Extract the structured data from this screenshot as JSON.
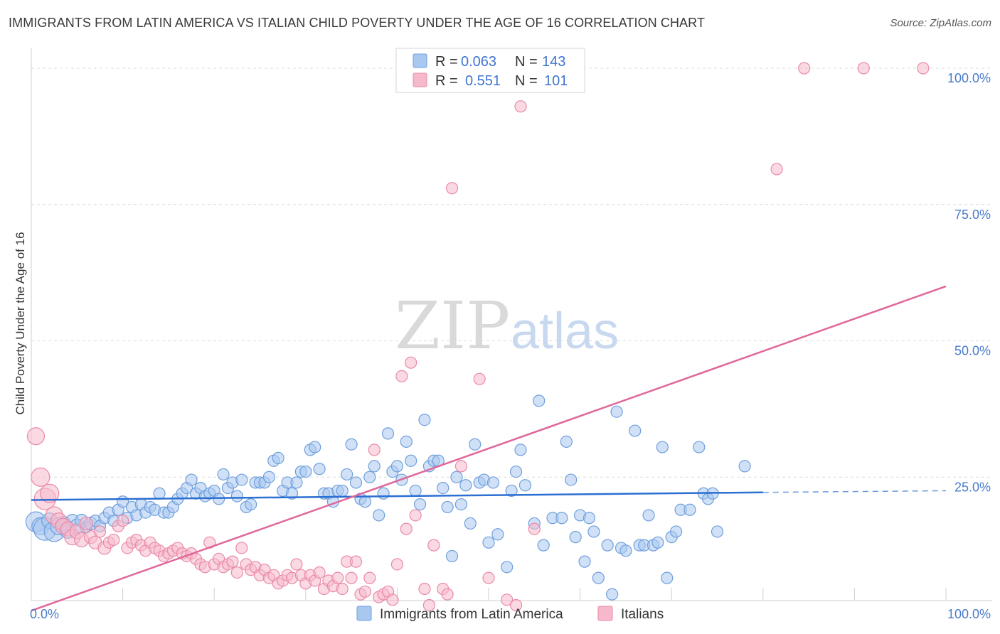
{
  "header": {
    "title": "IMMIGRANTS FROM LATIN AMERICA VS ITALIAN CHILD POVERTY UNDER THE AGE OF 16 CORRELATION CHART",
    "source": "Source: ZipAtlas.com"
  },
  "watermark": {
    "zip": "ZIP",
    "atlas": "atlas"
  },
  "legend": {
    "r_label": "R =",
    "n_label": "N =",
    "rows": [
      {
        "r": "0.063",
        "n": "143"
      },
      {
        "r": "0.551",
        "n": "101"
      }
    ]
  },
  "colors": {
    "blue_fill": "#a9c8f0",
    "blue_stroke": "#6f9fdc",
    "blue_line": "#2b6fd1",
    "pink_fill": "#f6b9cc",
    "pink_stroke": "#ea8aa8",
    "pink_line": "#e0679a",
    "grid": "#dcdcdc",
    "axis_text": "#4a7cc9"
  },
  "chart_data": {
    "type": "scatter",
    "title": "IMMIGRANTS FROM LATIN AMERICA VS ITALIAN CHILD POVERTY UNDER THE AGE OF 16 CORRELATION CHART",
    "xlabel": "",
    "ylabel": "Child Poverty Under the Age of 16",
    "xlim": [
      0,
      100
    ],
    "ylim": [
      0,
      100
    ],
    "x_tick_labels": [
      "0.0%",
      "100.0%"
    ],
    "y_ticks": [
      {
        "value": 25,
        "label": "25.0%"
      },
      {
        "value": 50,
        "label": "50.0%"
      },
      {
        "value": 75,
        "label": "75.0%"
      },
      {
        "value": 100,
        "label": "100.0%"
      }
    ],
    "grid": true,
    "legend_position": "top-center",
    "series": [
      {
        "name": "Immigrants from Latin America",
        "color": "blue",
        "R": 0.063,
        "N": 143,
        "trend": {
          "x": [
            0,
            80
          ],
          "y": [
            20.8,
            22.2
          ],
          "dashed_to": 100,
          "dashed_y": 22.5
        },
        "points": [
          [
            0.5,
            16.8,
            14
          ],
          [
            1,
            16,
            12
          ],
          [
            1.5,
            15.5,
            16
          ],
          [
            2,
            17,
            11
          ],
          [
            2.5,
            15,
            14
          ],
          [
            3,
            16,
            12
          ],
          [
            3.5,
            16.5,
            10
          ],
          [
            4,
            15.2,
            11
          ],
          [
            4.5,
            17,
            9
          ],
          [
            5,
            16,
            10
          ],
          [
            5.5,
            17,
            9
          ],
          [
            6,
            15.8,
            8
          ],
          [
            6.5,
            16.5,
            9
          ],
          [
            7,
            17,
            8
          ],
          [
            7.5,
            16,
            8
          ],
          [
            8,
            17.5,
            8
          ],
          [
            8.5,
            18.5,
            8
          ],
          [
            9,
            17,
            8
          ],
          [
            9.5,
            19,
            8
          ],
          [
            10,
            20.5,
            8
          ],
          [
            10.5,
            17.5,
            8
          ],
          [
            11,
            19.5,
            8
          ],
          [
            11.5,
            18,
            8
          ],
          [
            12,
            20,
            8
          ],
          [
            12.5,
            18.5,
            8
          ],
          [
            13,
            19.5,
            8
          ],
          [
            13.5,
            19,
            8
          ],
          [
            14,
            22,
            8
          ],
          [
            14.5,
            18.5,
            8
          ],
          [
            15,
            18.5,
            8
          ],
          [
            15.5,
            19.5,
            8
          ],
          [
            16,
            21,
            8
          ],
          [
            16.5,
            22,
            8
          ],
          [
            17,
            23,
            8
          ],
          [
            17.5,
            24.5,
            8
          ],
          [
            18,
            22,
            8
          ],
          [
            18.5,
            23,
            8
          ],
          [
            19,
            21.5,
            8
          ],
          [
            19.5,
            22,
            8
          ],
          [
            20,
            22.5,
            8
          ],
          [
            20.5,
            21,
            8
          ],
          [
            21,
            25.5,
            8
          ],
          [
            21.5,
            23,
            8
          ],
          [
            22,
            24,
            8
          ],
          [
            22.5,
            21.5,
            8
          ],
          [
            23,
            24.5,
            8
          ],
          [
            23.5,
            19.5,
            8
          ],
          [
            24,
            20,
            8
          ],
          [
            24.5,
            24,
            8
          ],
          [
            25,
            24,
            8
          ],
          [
            25.5,
            24,
            8
          ],
          [
            26,
            25,
            8
          ],
          [
            26.5,
            28,
            8
          ],
          [
            27,
            28.5,
            8
          ],
          [
            27.5,
            22.5,
            8
          ],
          [
            28,
            24,
            8
          ],
          [
            28.5,
            22,
            8
          ],
          [
            29,
            24,
            8
          ],
          [
            29.5,
            26,
            8
          ],
          [
            30,
            26,
            8
          ],
          [
            30.5,
            30,
            8
          ],
          [
            31,
            30.5,
            8
          ],
          [
            31.5,
            26.5,
            8
          ],
          [
            32,
            22,
            8
          ],
          [
            32.5,
            22,
            8
          ],
          [
            33,
            20.5,
            8
          ],
          [
            33.5,
            22.5,
            8
          ],
          [
            34,
            22.5,
            8
          ],
          [
            34.5,
            25.5,
            8
          ],
          [
            35,
            31,
            8
          ],
          [
            35.5,
            24,
            8
          ],
          [
            36,
            21,
            8
          ],
          [
            36.5,
            20.5,
            8
          ],
          [
            37,
            25,
            8
          ],
          [
            37.5,
            27,
            8
          ],
          [
            38,
            18,
            8
          ],
          [
            38.5,
            22,
            8
          ],
          [
            39,
            33,
            8
          ],
          [
            39.5,
            26,
            8
          ],
          [
            40,
            27,
            8
          ],
          [
            40.5,
            24.5,
            8
          ],
          [
            41,
            31.5,
            8
          ],
          [
            41.5,
            28,
            8
          ],
          [
            42,
            22.5,
            8
          ],
          [
            42.5,
            20,
            8
          ],
          [
            43,
            35.5,
            8
          ],
          [
            43.5,
            27,
            8
          ],
          [
            44,
            28,
            8
          ],
          [
            44.5,
            28,
            8
          ],
          [
            45,
            23,
            8
          ],
          [
            45.5,
            19.5,
            8
          ],
          [
            46,
            10.5,
            8
          ],
          [
            46.5,
            25,
            8
          ],
          [
            47,
            20,
            8
          ],
          [
            47.5,
            23.5,
            8
          ],
          [
            48,
            16.5,
            8
          ],
          [
            48.5,
            31,
            8
          ],
          [
            49,
            24,
            8
          ],
          [
            49.5,
            24.5,
            8
          ],
          [
            50,
            13,
            8
          ],
          [
            50.5,
            24,
            8
          ],
          [
            51,
            14.5,
            8
          ],
          [
            52,
            8.5,
            8
          ],
          [
            52.5,
            22.5,
            8
          ],
          [
            53,
            26,
            8
          ],
          [
            53.5,
            30,
            8
          ],
          [
            54,
            23.5,
            8
          ],
          [
            55,
            16.5,
            8
          ],
          [
            55.5,
            39,
            8
          ],
          [
            56,
            12.5,
            8
          ],
          [
            57,
            17.5,
            8
          ],
          [
            58,
            17.5,
            8
          ],
          [
            58.5,
            31.5,
            8
          ],
          [
            59,
            24.5,
            8
          ],
          [
            59.5,
            14,
            8
          ],
          [
            60,
            18,
            8
          ],
          [
            60.5,
            9.5,
            8
          ],
          [
            61,
            17.5,
            8
          ],
          [
            61.5,
            15,
            8
          ],
          [
            62,
            6.5,
            8
          ],
          [
            63,
            12.5,
            8
          ],
          [
            63.5,
            3.5,
            8
          ],
          [
            64,
            37,
            8
          ],
          [
            64.5,
            12,
            8
          ],
          [
            65,
            11.5,
            8
          ],
          [
            66,
            33.5,
            8
          ],
          [
            66.5,
            12.5,
            8
          ],
          [
            67,
            12.5,
            8
          ],
          [
            67.5,
            18,
            8
          ],
          [
            68,
            12.5,
            8
          ],
          [
            68.5,
            13,
            8
          ],
          [
            69,
            30.5,
            8
          ],
          [
            69.5,
            6.5,
            8
          ],
          [
            70,
            14,
            8
          ],
          [
            70.5,
            15,
            8
          ],
          [
            71,
            19,
            8
          ],
          [
            72,
            19,
            8
          ],
          [
            73,
            30.5,
            8
          ],
          [
            73.5,
            22,
            8
          ],
          [
            74,
            21,
            8
          ],
          [
            74.5,
            22,
            8
          ],
          [
            75,
            15,
            8
          ],
          [
            78,
            27,
            8
          ]
        ]
      },
      {
        "name": "Italians",
        "color": "pink",
        "R": 0.551,
        "N": 101,
        "trend": {
          "x": [
            0,
            100
          ],
          "y": [
            0.5,
            60
          ]
        },
        "points": [
          [
            0.5,
            32.5,
            12
          ],
          [
            1,
            25,
            13
          ],
          [
            1.5,
            21,
            15
          ],
          [
            2,
            22,
            13
          ],
          [
            2.5,
            18,
            12
          ],
          [
            3,
            17,
            11
          ],
          [
            3.5,
            16,
            11
          ],
          [
            4,
            15.5,
            10
          ],
          [
            4.5,
            14,
            11
          ],
          [
            5,
            15,
            10
          ],
          [
            5.5,
            13.5,
            10
          ],
          [
            6,
            16.5,
            9
          ],
          [
            6.5,
            14,
            9
          ],
          [
            7,
            13,
            9
          ],
          [
            7.5,
            15,
            8
          ],
          [
            8,
            12,
            9
          ],
          [
            8.5,
            13,
            8
          ],
          [
            9,
            13.5,
            8
          ],
          [
            9.5,
            16,
            8
          ],
          [
            10,
            17,
            8
          ],
          [
            10.5,
            12,
            8
          ],
          [
            11,
            13,
            8
          ],
          [
            11.5,
            13.5,
            8
          ],
          [
            12,
            12.5,
            8
          ],
          [
            12.5,
            11.5,
            8
          ],
          [
            13,
            13,
            8
          ],
          [
            13.5,
            12,
            8
          ],
          [
            14,
            11.5,
            8
          ],
          [
            14.5,
            10.5,
            8
          ],
          [
            15,
            11,
            8
          ],
          [
            15.5,
            11.5,
            8
          ],
          [
            16,
            12,
            8
          ],
          [
            16.5,
            11,
            8
          ],
          [
            17,
            10.5,
            8
          ],
          [
            17.5,
            11,
            8
          ],
          [
            18,
            10,
            8
          ],
          [
            18.5,
            9,
            8
          ],
          [
            19,
            8.5,
            8
          ],
          [
            19.5,
            13,
            8
          ],
          [
            20,
            9,
            8
          ],
          [
            20.5,
            10,
            8
          ],
          [
            21,
            8.5,
            8
          ],
          [
            21.5,
            9,
            8
          ],
          [
            22,
            9.5,
            8
          ],
          [
            22.5,
            7.5,
            8
          ],
          [
            23,
            12,
            8
          ],
          [
            23.5,
            9,
            8
          ],
          [
            24,
            8,
            8
          ],
          [
            24.5,
            8.5,
            8
          ],
          [
            25,
            7,
            8
          ],
          [
            25.5,
            8,
            8
          ],
          [
            26,
            6.5,
            8
          ],
          [
            26.5,
            7,
            8
          ],
          [
            27,
            5.5,
            8
          ],
          [
            27.5,
            6,
            8
          ],
          [
            28,
            7,
            8
          ],
          [
            28.5,
            6.5,
            8
          ],
          [
            29,
            9,
            8
          ],
          [
            29.5,
            7,
            8
          ],
          [
            30,
            5.5,
            8
          ],
          [
            30.5,
            7,
            8
          ],
          [
            31,
            6,
            8
          ],
          [
            31.5,
            7.5,
            8
          ],
          [
            32,
            4.5,
            8
          ],
          [
            32.5,
            6,
            8
          ],
          [
            33,
            5,
            8
          ],
          [
            33.5,
            6.5,
            8
          ],
          [
            34,
            4.5,
            8
          ],
          [
            34.5,
            9.5,
            8
          ],
          [
            35,
            6.5,
            8
          ],
          [
            35.5,
            9.5,
            8
          ],
          [
            36,
            3.5,
            8
          ],
          [
            36.5,
            4,
            8
          ],
          [
            37,
            6.5,
            8
          ],
          [
            37.5,
            30,
            8
          ],
          [
            38,
            3,
            8
          ],
          [
            38.5,
            3.5,
            8
          ],
          [
            39,
            4,
            8
          ],
          [
            39.5,
            2.5,
            8
          ],
          [
            40,
            9,
            8
          ],
          [
            40.5,
            43.5,
            8
          ],
          [
            41,
            15.5,
            8
          ],
          [
            41.5,
            46,
            8
          ],
          [
            42,
            18,
            8
          ],
          [
            43,
            4.5,
            8
          ],
          [
            43.5,
            1.5,
            8
          ],
          [
            44,
            12.5,
            8
          ],
          [
            45,
            4.5,
            8
          ],
          [
            45.5,
            3.5,
            8
          ],
          [
            46,
            78,
            8
          ],
          [
            47,
            27,
            8
          ],
          [
            49,
            43,
            8
          ],
          [
            50,
            6.5,
            8
          ],
          [
            52,
            2.5,
            8
          ],
          [
            53,
            1.5,
            8
          ],
          [
            53.5,
            93,
            8
          ],
          [
            55,
            15.5,
            8
          ],
          [
            81.5,
            81.5,
            8
          ],
          [
            84.5,
            100,
            8
          ],
          [
            91,
            100,
            8
          ],
          [
            97.5,
            100,
            8
          ]
        ]
      }
    ]
  },
  "bottom_legend": [
    {
      "label": "Immigrants from Latin America"
    },
    {
      "label": "Italians"
    }
  ]
}
